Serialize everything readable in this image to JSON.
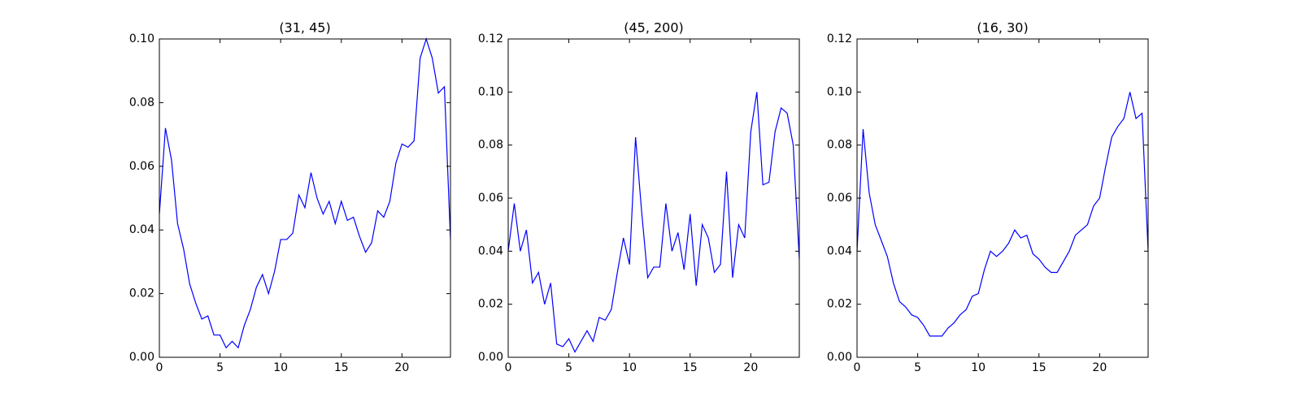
{
  "chart_data": [
    {
      "type": "line",
      "title": "(31, 45)",
      "color": "#0000ff",
      "x": [
        0,
        0.5,
        1,
        1.5,
        2,
        2.5,
        3,
        3.5,
        4,
        4.5,
        5,
        5.5,
        6,
        6.5,
        7,
        7.5,
        8,
        8.5,
        9,
        9.5,
        10,
        10.5,
        11,
        11.5,
        12,
        12.5,
        13,
        13.5,
        14,
        14.5,
        15,
        15.5,
        16,
        16.5,
        17,
        17.5,
        18,
        18.5,
        19,
        19.5,
        20,
        20.5,
        21,
        21.5,
        22,
        22.5,
        23,
        23.5,
        24
      ],
      "values": [
        0.045,
        0.072,
        0.062,
        0.042,
        0.034,
        0.023,
        0.017,
        0.012,
        0.013,
        0.007,
        0.007,
        0.003,
        0.005,
        0.003,
        0.01,
        0.015,
        0.022,
        0.026,
        0.02,
        0.027,
        0.037,
        0.037,
        0.039,
        0.051,
        0.047,
        0.058,
        0.05,
        0.045,
        0.049,
        0.042,
        0.049,
        0.043,
        0.044,
        0.038,
        0.033,
        0.036,
        0.046,
        0.044,
        0.049,
        0.061,
        0.067,
        0.066,
        0.068,
        0.094,
        0.1,
        0.094,
        0.083,
        0.085,
        0.037
      ],
      "xlim": [
        0,
        24
      ],
      "xticks": [
        0,
        5,
        10,
        15,
        20
      ],
      "ylim": [
        0,
        0.1
      ],
      "yticks": [
        {
          "value": 0,
          "label": "0.00"
        },
        {
          "value": 0.02,
          "label": "0.02"
        },
        {
          "value": 0.04,
          "label": "0.04"
        },
        {
          "value": 0.06,
          "label": "0.06"
        },
        {
          "value": 0.08,
          "label": "0.08"
        },
        {
          "value": 0.1,
          "label": "0.10"
        }
      ]
    },
    {
      "type": "line",
      "title": "(45, 200)",
      "color": "#0000ff",
      "x": [
        0,
        0.5,
        1,
        1.5,
        2,
        2.5,
        3,
        3.5,
        4,
        4.5,
        5,
        5.5,
        6,
        6.5,
        7,
        7.5,
        8,
        8.5,
        9,
        9.5,
        10,
        10.5,
        11,
        11.5,
        12,
        12.5,
        13,
        13.5,
        14,
        14.5,
        15,
        15.5,
        16,
        16.5,
        17,
        17.5,
        18,
        18.5,
        19,
        19.5,
        20,
        20.5,
        21,
        21.5,
        22,
        22.5,
        23,
        23.5,
        24
      ],
      "values": [
        0.04,
        0.058,
        0.04,
        0.048,
        0.028,
        0.032,
        0.02,
        0.028,
        0.005,
        0.004,
        0.007,
        0.002,
        0.006,
        0.01,
        0.006,
        0.015,
        0.014,
        0.018,
        0.032,
        0.045,
        0.035,
        0.083,
        0.055,
        0.03,
        0.034,
        0.034,
        0.058,
        0.04,
        0.047,
        0.033,
        0.054,
        0.027,
        0.05,
        0.045,
        0.032,
        0.035,
        0.07,
        0.03,
        0.05,
        0.045,
        0.085,
        0.1,
        0.065,
        0.066,
        0.085,
        0.094,
        0.092,
        0.08,
        0.037
      ],
      "xlim": [
        0,
        24
      ],
      "xticks": [
        0,
        5,
        10,
        15,
        20
      ],
      "ylim": [
        0,
        0.12
      ],
      "yticks": [
        {
          "value": 0,
          "label": "0.00"
        },
        {
          "value": 0.02,
          "label": "0.02"
        },
        {
          "value": 0.04,
          "label": "0.04"
        },
        {
          "value": 0.06,
          "label": "0.06"
        },
        {
          "value": 0.08,
          "label": "0.08"
        },
        {
          "value": 0.1,
          "label": "0.10"
        },
        {
          "value": 0.12,
          "label": "0.12"
        }
      ]
    },
    {
      "type": "line",
      "title": "(16, 30)",
      "color": "#0000ff",
      "x": [
        0,
        0.5,
        1,
        1.5,
        2,
        2.5,
        3,
        3.5,
        4,
        4.5,
        5,
        5.5,
        6,
        6.5,
        7,
        7.5,
        8,
        8.5,
        9,
        9.5,
        10,
        10.5,
        11,
        11.5,
        12,
        12.5,
        13,
        13.5,
        14,
        14.5,
        15,
        15.5,
        16,
        16.5,
        17,
        17.5,
        18,
        18.5,
        19,
        19.5,
        20,
        20.5,
        21,
        21.5,
        22,
        22.5,
        23,
        23.5,
        24
      ],
      "values": [
        0.04,
        0.086,
        0.062,
        0.05,
        0.044,
        0.038,
        0.028,
        0.021,
        0.019,
        0.016,
        0.015,
        0.012,
        0.008,
        0.008,
        0.008,
        0.011,
        0.013,
        0.016,
        0.018,
        0.023,
        0.024,
        0.033,
        0.04,
        0.038,
        0.04,
        0.043,
        0.048,
        0.045,
        0.046,
        0.039,
        0.037,
        0.034,
        0.032,
        0.032,
        0.036,
        0.04,
        0.046,
        0.048,
        0.05,
        0.057,
        0.06,
        0.072,
        0.083,
        0.087,
        0.09,
        0.1,
        0.09,
        0.092,
        0.04
      ],
      "xlim": [
        0,
        24
      ],
      "xticks": [
        0,
        5,
        10,
        15,
        20
      ],
      "ylim": [
        0,
        0.12
      ],
      "yticks": [
        {
          "value": 0,
          "label": "0.00"
        },
        {
          "value": 0.02,
          "label": "0.02"
        },
        {
          "value": 0.04,
          "label": "0.04"
        },
        {
          "value": 0.06,
          "label": "0.06"
        },
        {
          "value": 0.08,
          "label": "0.08"
        },
        {
          "value": 0.1,
          "label": "0.10"
        },
        {
          "value": 0.12,
          "label": "0.12"
        }
      ]
    }
  ]
}
